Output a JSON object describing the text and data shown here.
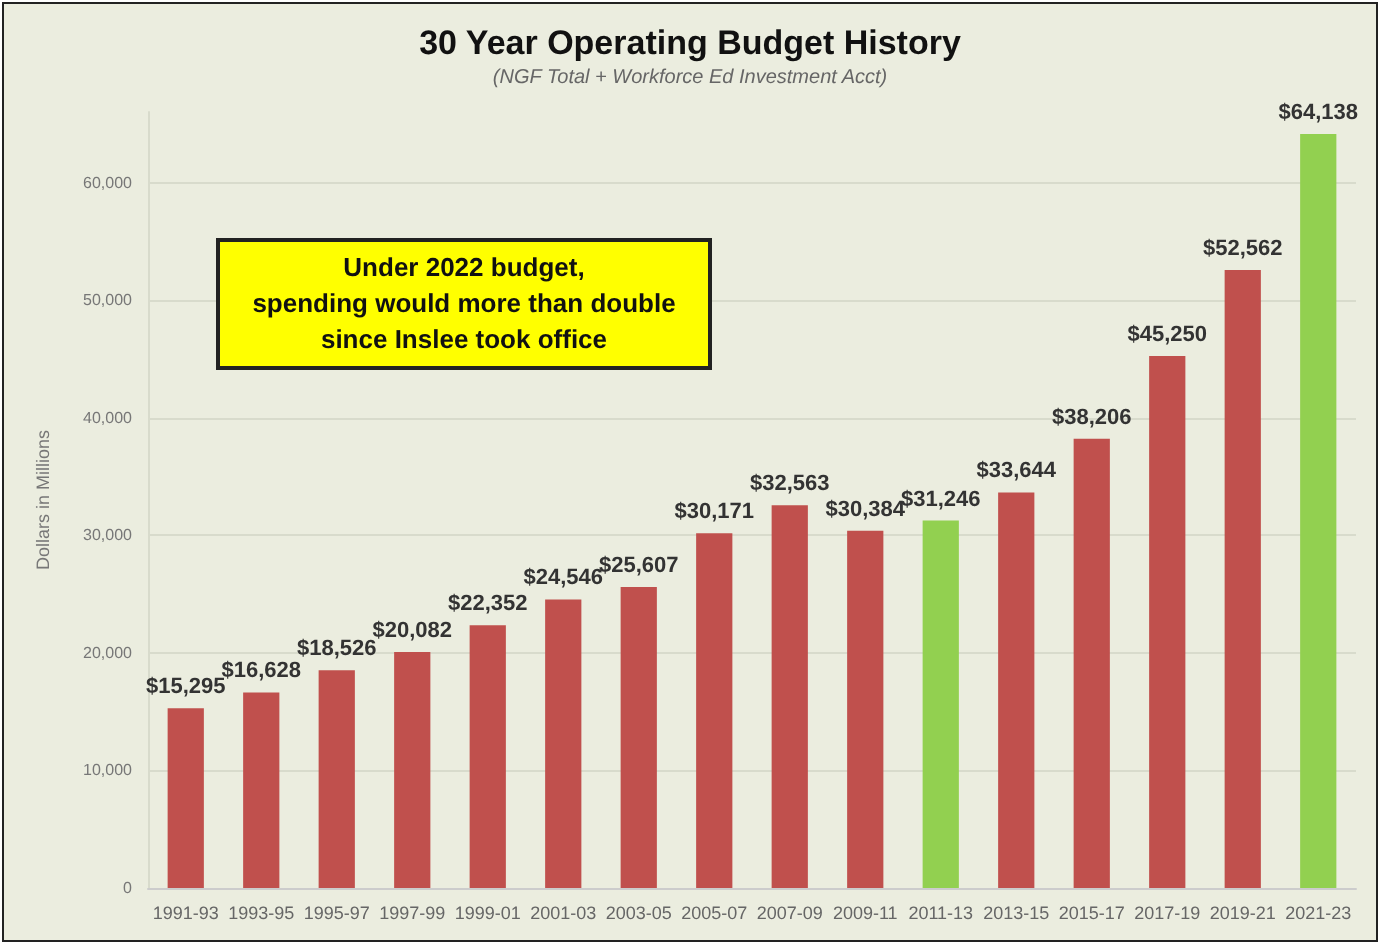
{
  "chart_data": {
    "type": "bar",
    "title": "30 Year Operating Budget History",
    "subtitle": "(NGF Total + Workforce Ed Investment Acct)",
    "ylabel": "Dollars in Millions",
    "annotations": [
      "Under 2022 budget,\nspending would more than double\nsince Inslee took office"
    ],
    "categories": [
      "1991-93",
      "1993-95",
      "1995-97",
      "1997-99",
      "1999-01",
      "2001-03",
      "2003-05",
      "2005-07",
      "2007-09",
      "2009-11",
      "2011-13",
      "2013-15",
      "2015-17",
      "2017-19",
      "2019-21",
      "2021-23"
    ],
    "values": [
      15295,
      16628,
      18526,
      20082,
      22352,
      24546,
      25607,
      30171,
      32563,
      30384,
      31246,
      33644,
      38206,
      45250,
      52562,
      64138
    ],
    "value_labels": [
      "$15,295",
      "$16,628",
      "$18,526",
      "$20,082",
      "$22,352",
      "$24,546",
      "$25,607",
      "$30,171",
      "$32,563",
      "$30,384",
      "$31,246",
      "$33,644",
      "$38,206",
      "$45,250",
      "$52,562",
      "$64,138"
    ],
    "colors": [
      "#c0504d",
      "#c0504d",
      "#c0504d",
      "#c0504d",
      "#c0504d",
      "#c0504d",
      "#c0504d",
      "#c0504d",
      "#c0504d",
      "#c0504d",
      "#92d050",
      "#c0504d",
      "#c0504d",
      "#c0504d",
      "#c0504d",
      "#92d050"
    ],
    "ylim": [
      0,
      66000
    ],
    "yticks": [
      {
        "value": 0,
        "label": "0"
      },
      {
        "value": 10000,
        "label": "10,000"
      },
      {
        "value": 20000,
        "label": "20,000"
      },
      {
        "value": 30000,
        "label": "30,000"
      },
      {
        "value": 40000,
        "label": "40,000"
      },
      {
        "value": 50000,
        "label": "50,000"
      },
      {
        "value": 60000,
        "label": "60,000"
      }
    ],
    "grid": true
  }
}
